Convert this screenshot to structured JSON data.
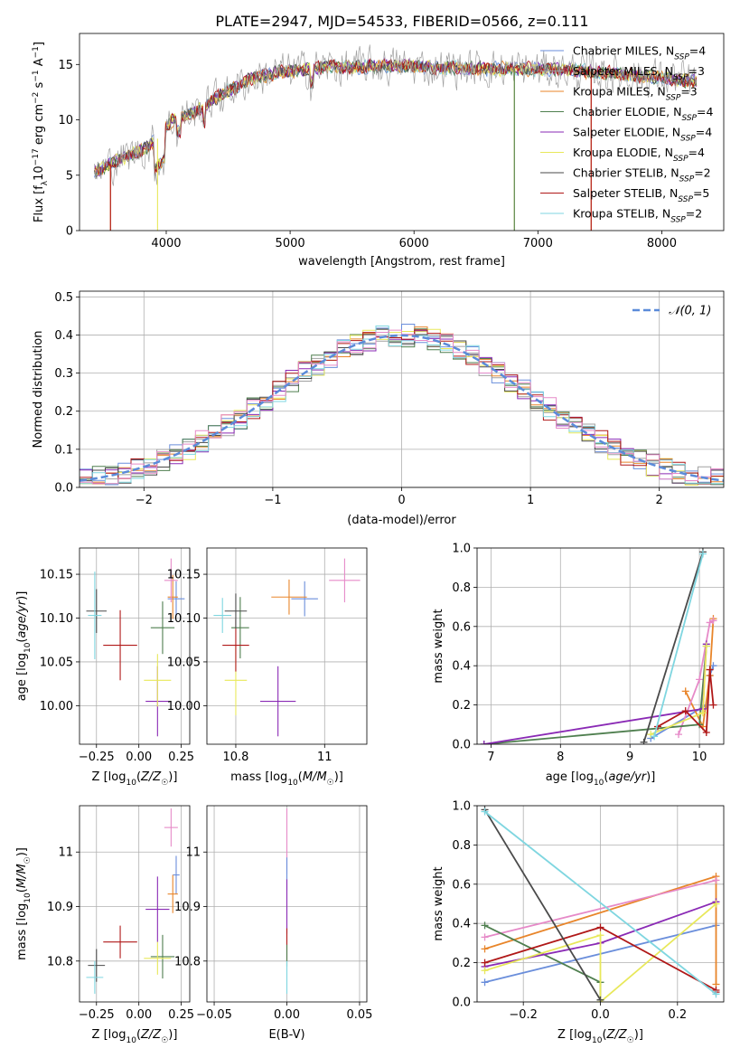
{
  "figure_title": "PLATE=2947, MJD=54533, FIBERID=0566, z=0.111",
  "colors": {
    "Chabrier MILES": "#6a8edb",
    "Salpeter MILES": "#a0a0a0",
    "Kroupa MILES": "#e8852a",
    "Chabrier ELODIE": "#4f7f4f",
    "Salpeter ELODIE": "#8a2ab5",
    "Kroupa ELODIE": "#e8e85a",
    "Chabrier STELIB": "#4a4a4a",
    "Salpeter STELIB": "#b01818",
    "Kroupa STELIB": "#7fd6e0",
    "pink": "#e68ac8"
  },
  "chart_data": [
    {
      "id": "spectrum",
      "type": "line",
      "xlabel": "wavelength [Angstrom, rest frame]",
      "ylabel": "Flux [f_λ10^-17 erg cm^-2 s^-1 A^-1]",
      "xlim": [
        3300,
        8500
      ],
      "ylim": [
        0,
        17.8
      ],
      "xticks": [
        4000,
        5000,
        6000,
        7000,
        8000
      ],
      "yticks": [
        0,
        5,
        10,
        15
      ],
      "grid": false,
      "legend_position": "top-right",
      "legend": [
        {
          "label": "Chabrier MILES, N_SSP=4",
          "color": "#6a8edb"
        },
        {
          "label": "Salpeter MILES, N_SSP=3",
          "color": "#a0a0a0"
        },
        {
          "label": "Kroupa MILES, N_SSP=3",
          "color": "#e8852a"
        },
        {
          "label": "Chabrier ELODIE, N_SSP=4",
          "color": "#4f7f4f"
        },
        {
          "label": "Salpeter ELODIE, N_SSP=4",
          "color": "#8a2ab5"
        },
        {
          "label": "Kroupa ELODIE, N_SSP=4",
          "color": "#e8e85a"
        },
        {
          "label": "Chabrier STELIB, N_SSP=2",
          "color": "#4a4a4a"
        },
        {
          "label": "Salpeter STELIB, N_SSP=5",
          "color": "#b01818"
        },
        {
          "label": "Kroupa STELIB, N_SSP=2",
          "color": "#7fd6e0"
        }
      ],
      "continuum_x": [
        3420,
        3550,
        3700,
        3850,
        3950,
        4050,
        4200,
        4350,
        4500,
        4700,
        4900,
        5100,
        5300,
        5500,
        5700,
        6000,
        6300,
        6600,
        6900,
        7200,
        7500,
        7800,
        8100,
        8280
      ],
      "continuum_y": [
        5.2,
        6.0,
        6.8,
        7.5,
        8.5,
        10.0,
        10.5,
        11.6,
        12.6,
        13.8,
        14.3,
        14.5,
        14.8,
        14.7,
        14.9,
        14.8,
        14.7,
        14.6,
        14.6,
        14.5,
        14.3,
        14.0,
        13.7,
        13.4
      ],
      "series_extent": {
        "x_min": 3420,
        "x_max": 8280
      }
    },
    {
      "id": "residuals",
      "type": "step",
      "xlabel": "(data-model)/error",
      "ylabel": "Normed distribution",
      "xlim": [
        -2.5,
        2.5
      ],
      "ylim": [
        0,
        0.515
      ],
      "xticks": [
        -2,
        -1,
        0,
        1,
        2
      ],
      "xtick_labels": [
        "−2",
        "−1",
        "0",
        "1",
        "2"
      ],
      "yticks": [
        0.0,
        0.1,
        0.2,
        0.3,
        0.4,
        0.5
      ],
      "grid": true,
      "legend_position": "top-right",
      "legend": [
        {
          "label": "𝒩(0, 1)",
          "color": "#5b8bd9"
        }
      ],
      "bin_width": 0.1
    },
    {
      "id": "age-vs-Z",
      "type": "scatter",
      "xlabel": "Z [log10(Z/Z☉)]",
      "ylabel": "age  [log10(age/yr)]",
      "xlim": [
        -0.35,
        0.3
      ],
      "ylim": [
        9.956,
        10.18
      ],
      "xticks": [
        -0.25,
        0.0,
        0.25
      ],
      "xtick_labels": [
        "−0.25",
        "0.00",
        "0.25"
      ],
      "yticks": [
        10.0,
        10.05,
        10.1,
        10.15
      ],
      "ytick_labels": [
        "10.00",
        "10.05",
        "10.10",
        "10.15"
      ],
      "grid": true,
      "points": [
        {
          "color": "#6a8edb",
          "x": 0.22,
          "y": 10.122,
          "xerr": 0.05,
          "yerr": 0.02
        },
        {
          "color": "#e8852a",
          "x": 0.2,
          "y": 10.124,
          "xerr": 0.03,
          "yerr": 0.025
        },
        {
          "color": "#e68ac8",
          "x": 0.19,
          "y": 10.143,
          "xerr": 0.04,
          "yerr": 0.025
        },
        {
          "color": "#4f7f4f",
          "x": 0.14,
          "y": 10.089,
          "xerr": 0.07,
          "yerr": 0.03
        },
        {
          "color": "#8a2ab5",
          "x": 0.11,
          "y": 10.005,
          "xerr": 0.07,
          "yerr": 0.04
        },
        {
          "color": "#e8e85a",
          "x": 0.11,
          "y": 10.029,
          "xerr": 0.08,
          "yerr": 0.03
        },
        {
          "color": "#b01818",
          "x": -0.11,
          "y": 10.069,
          "xerr": 0.1,
          "yerr": 0.04
        },
        {
          "color": "#4a4a4a",
          "x": -0.25,
          "y": 10.108,
          "xerr": 0.06,
          "yerr": 0.025
        },
        {
          "color": "#7fd6e0",
          "x": -0.26,
          "y": 10.103,
          "xerr": 0.04,
          "yerr": 0.05
        }
      ]
    },
    {
      "id": "age-vs-mass",
      "type": "scatter",
      "xlabel": "mass [log10(M/M☉)]",
      "ylabel": "",
      "xlim": [
        10.735,
        11.095
      ],
      "ylim": [
        9.956,
        10.18
      ],
      "xticks": [
        10.8,
        11.0
      ],
      "yticks": [
        10.0,
        10.05,
        10.1,
        10.15
      ],
      "ytick_labels": [
        "10.00",
        "10.05",
        "10.10",
        "10.15"
      ],
      "grid": true,
      "points": [
        {
          "color": "#6a8edb",
          "x": 10.955,
          "y": 10.122,
          "xerr": 0.03,
          "yerr": 0.02
        },
        {
          "color": "#e8852a",
          "x": 10.92,
          "y": 10.124,
          "xerr": 0.04,
          "yerr": 0.02
        },
        {
          "color": "#e68ac8",
          "x": 11.045,
          "y": 10.143,
          "xerr": 0.035,
          "yerr": 0.025
        },
        {
          "color": "#4f7f4f",
          "x": 10.81,
          "y": 10.089,
          "xerr": 0.02,
          "yerr": 0.035
        },
        {
          "color": "#8a2ab5",
          "x": 10.895,
          "y": 10.005,
          "xerr": 0.04,
          "yerr": 0.04
        },
        {
          "color": "#e8e85a",
          "x": 10.8,
          "y": 10.029,
          "xerr": 0.025,
          "yerr": 0.04
        },
        {
          "color": "#b01818",
          "x": 10.8,
          "y": 10.069,
          "xerr": 0.03,
          "yerr": 0.03
        },
        {
          "color": "#4a4a4a",
          "x": 10.8,
          "y": 10.108,
          "xerr": 0.025,
          "yerr": 0.02
        },
        {
          "color": "#7fd6e0",
          "x": 10.77,
          "y": 10.103,
          "xerr": 0.02,
          "yerr": 0.02
        }
      ]
    },
    {
      "id": "weight-vs-age",
      "type": "line",
      "xlabel": "age  [log10(age/yr)]",
      "ylabel": "mass weight",
      "xlim": [
        6.8,
        10.35
      ],
      "ylim": [
        0,
        1
      ],
      "xticks": [
        7,
        8,
        9,
        10
      ],
      "yticks": [
        0.0,
        0.2,
        0.4,
        0.6,
        0.8,
        1.0
      ],
      "grid": true,
      "series": [
        {
          "color": "#6a8edb",
          "x": [
            9.3,
            10.1,
            10.15,
            10.2
          ],
          "y": [
            0.03,
            0.2,
            0.35,
            0.4
          ]
        },
        {
          "color": "#e8852a",
          "x": [
            9.8,
            10.05,
            10.15,
            10.2
          ],
          "y": [
            0.27,
            0.09,
            0.35,
            0.64
          ]
        },
        {
          "color": "#e68ac8",
          "x": [
            9.7,
            10.0,
            10.15,
            10.2
          ],
          "y": [
            0.05,
            0.33,
            0.62,
            0.63
          ]
        },
        {
          "color": "#4f7f4f",
          "x": [
            6.9,
            10.0,
            10.1
          ],
          "y": [
            0.0,
            0.1,
            0.5
          ]
        },
        {
          "color": "#8a2ab5",
          "x": [
            6.9,
            10.05,
            10.1
          ],
          "y": [
            0.0,
            0.18,
            0.51
          ]
        },
        {
          "color": "#e8e85a",
          "x": [
            9.3,
            10.05,
            10.1
          ],
          "y": [
            0.05,
            0.16,
            0.5
          ]
        },
        {
          "color": "#b01818",
          "x": [
            9.4,
            9.8,
            10.1,
            10.15,
            10.2
          ],
          "y": [
            0.09,
            0.17,
            0.06,
            0.38,
            0.2
          ]
        },
        {
          "color": "#4a4a4a",
          "x": [
            9.2,
            10.05
          ],
          "y": [
            0.01,
            0.98
          ]
        },
        {
          "color": "#7fd6e0",
          "x": [
            9.35,
            10.05
          ],
          "y": [
            0.04,
            0.97
          ]
        }
      ]
    },
    {
      "id": "mass-vs-Z",
      "type": "scatter",
      "xlabel": "Z [log10(Z/Z☉)]",
      "ylabel": "mass [log10(M/M☉)]",
      "xlim": [
        -0.35,
        0.3
      ],
      "ylim": [
        10.725,
        11.085
      ],
      "xticks": [
        -0.25,
        0.0,
        0.25
      ],
      "xtick_labels": [
        "−0.25",
        "0.00",
        "0.25"
      ],
      "yticks": [
        10.8,
        10.9,
        11.0
      ],
      "grid": true,
      "points": [
        {
          "color": "#6a8edb",
          "x": 0.22,
          "y": 10.958,
          "xerr": 0.02,
          "yerr": 0.035
        },
        {
          "color": "#e8852a",
          "x": 0.2,
          "y": 10.923,
          "xerr": 0.03,
          "yerr": 0.035
        },
        {
          "color": "#e68ac8",
          "x": 0.19,
          "y": 11.045,
          "xerr": 0.04,
          "yerr": 0.035
        },
        {
          "color": "#4f7f4f",
          "x": 0.14,
          "y": 10.808,
          "xerr": 0.07,
          "yerr": 0.04
        },
        {
          "color": "#8a2ab5",
          "x": 0.11,
          "y": 10.895,
          "xerr": 0.07,
          "yerr": 0.06
        },
        {
          "color": "#e8e85a",
          "x": 0.11,
          "y": 10.805,
          "xerr": 0.08,
          "yerr": 0.03
        },
        {
          "color": "#b01818",
          "x": -0.11,
          "y": 10.835,
          "xerr": 0.1,
          "yerr": 0.03
        },
        {
          "color": "#4a4a4a",
          "x": -0.25,
          "y": 10.792,
          "xerr": 0.05,
          "yerr": 0.03
        },
        {
          "color": "#7fd6e0",
          "x": -0.26,
          "y": 10.77,
          "xerr": 0.05,
          "yerr": 0.03
        }
      ]
    },
    {
      "id": "mass-vs-ebv",
      "type": "scatter",
      "xlabel": "E(B-V)",
      "ylabel": "",
      "xlim": [
        -0.055,
        0.055
      ],
      "ylim": [
        10.725,
        11.085
      ],
      "xticks": [
        -0.05,
        0.0,
        0.05
      ],
      "xtick_labels": [
        "−0.05",
        "0.00",
        "0.05"
      ],
      "yticks": [
        10.8,
        10.9,
        11.0
      ],
      "grid": true,
      "points": [
        {
          "color": "#e68ac8",
          "x": 0.0,
          "y": 11.02,
          "xerr": 0.0,
          "yerr": 0.06
        },
        {
          "color": "#6a8edb",
          "x": 0.0,
          "y": 10.96,
          "xerr": 0.0,
          "yerr": 0.03
        },
        {
          "color": "#8a2ab5",
          "x": 0.0,
          "y": 10.9,
          "xerr": 0.0,
          "yerr": 0.05
        },
        {
          "color": "#b01818",
          "x": 0.0,
          "y": 10.83,
          "xerr": 0.0,
          "yerr": 0.03
        },
        {
          "color": "#4f7f4f",
          "x": 0.0,
          "y": 10.81,
          "xerr": 0.0,
          "yerr": 0.02
        },
        {
          "color": "#7fd6e0",
          "x": 0.0,
          "y": 10.77,
          "xerr": 0.0,
          "yerr": 0.03
        }
      ]
    },
    {
      "id": "weight-vs-Z",
      "type": "line",
      "xlabel": "Z [log10(Z/Z☉)]",
      "ylabel": "mass weight",
      "xlim": [
        -0.32,
        0.32
      ],
      "ylim": [
        0,
        1
      ],
      "xticks": [
        -0.2,
        0.0,
        0.2
      ],
      "xtick_labels": [
        "−0.2",
        "0.0",
        "0.2"
      ],
      "yticks": [
        0.0,
        0.2,
        0.4,
        0.6,
        0.8,
        1.0
      ],
      "grid": true,
      "series": [
        {
          "color": "#6a8edb",
          "x": [
            -0.3,
            0.3
          ],
          "y": [
            0.1,
            0.39
          ]
        },
        {
          "color": "#e8852a",
          "x": [
            -0.3,
            0.3,
            0.3
          ],
          "y": [
            0.27,
            0.64,
            0.09
          ]
        },
        {
          "color": "#e68ac8",
          "x": [
            -0.3,
            0.3
          ],
          "y": [
            0.33,
            0.62
          ]
        },
        {
          "color": "#4f7f4f",
          "x": [
            -0.3,
            0.0,
            0.0
          ],
          "y": [
            0.39,
            0.1,
            0.01
          ]
        },
        {
          "color": "#8a2ab5",
          "x": [
            -0.3,
            0.0,
            0.3
          ],
          "y": [
            0.18,
            0.3,
            0.51
          ]
        },
        {
          "color": "#e8e85a",
          "x": [
            -0.3,
            0.0,
            0.0,
            0.3
          ],
          "y": [
            0.16,
            0.34,
            0.0,
            0.5
          ]
        },
        {
          "color": "#b01818",
          "x": [
            -0.3,
            0.0,
            0.3,
            0.3
          ],
          "y": [
            0.2,
            0.38,
            0.06,
            0.05
          ]
        },
        {
          "color": "#4a4a4a",
          "x": [
            -0.3,
            0.0
          ],
          "y": [
            0.98,
            0.01
          ]
        },
        {
          "color": "#7fd6e0",
          "x": [
            -0.3,
            0.3
          ],
          "y": [
            0.97,
            0.04
          ]
        }
      ]
    }
  ]
}
